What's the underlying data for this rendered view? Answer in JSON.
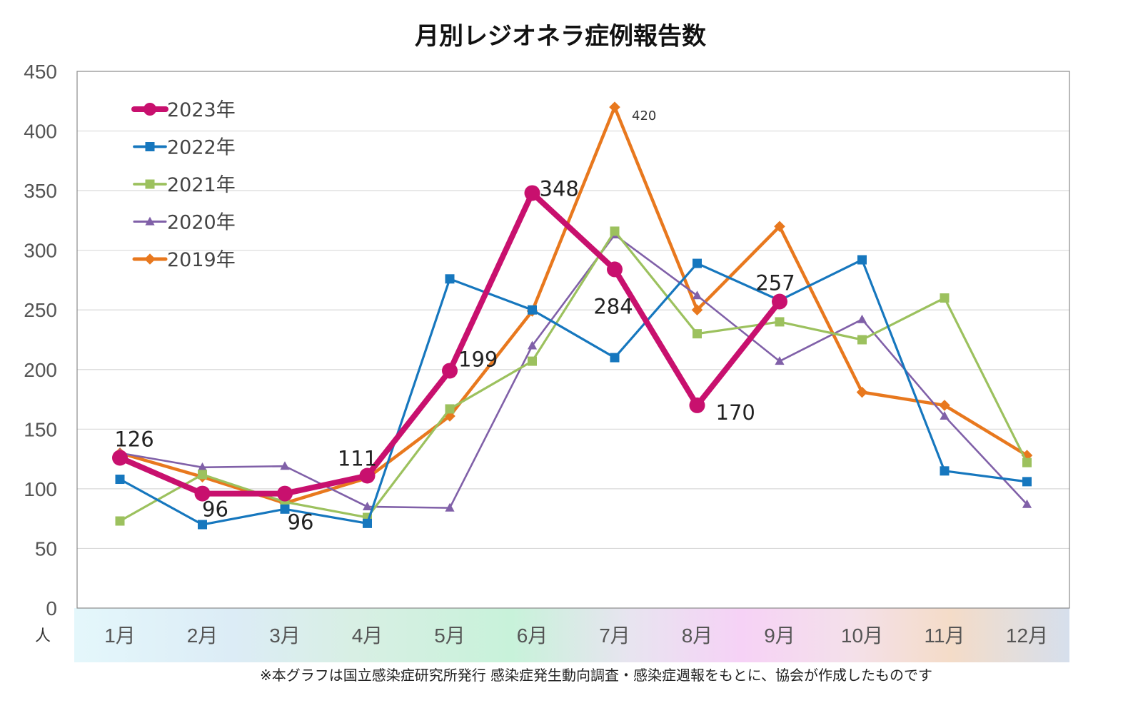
{
  "chart_data": {
    "type": "line",
    "title": "月別レジオネラ症例報告数",
    "ylabel": "人",
    "xlabel": "",
    "ylim": [
      0,
      450
    ],
    "yticks": [
      0,
      50,
      100,
      150,
      200,
      250,
      300,
      350,
      400,
      450
    ],
    "grid": true,
    "legend_position": "top-left",
    "categories": [
      "1月",
      "2月",
      "3月",
      "4月",
      "5月",
      "6月",
      "7月",
      "8月",
      "9月",
      "10月",
      "11月",
      "12月"
    ],
    "series": [
      {
        "name": "2023年",
        "color": "#c8106e",
        "marker": "circle",
        "values": [
          126,
          96,
          96,
          111,
          199,
          348,
          284,
          170,
          257,
          null,
          null,
          null
        ]
      },
      {
        "name": "2022年",
        "color": "#1677be",
        "marker": "square",
        "values": [
          108,
          70,
          83,
          71,
          276,
          250,
          210,
          289,
          258,
          292,
          115,
          106
        ]
      },
      {
        "name": "2021年",
        "color": "#9cc15e",
        "marker": "square",
        "values": [
          73,
          112,
          89,
          76,
          167,
          207,
          316,
          230,
          240,
          225,
          260,
          122
        ]
      },
      {
        "name": "2020年",
        "color": "#8060a8",
        "marker": "triangle",
        "values": [
          130,
          118,
          119,
          85,
          84,
          220,
          313,
          262,
          207,
          242,
          161,
          87
        ]
      },
      {
        "name": "2019年",
        "color": "#e8781e",
        "marker": "diamond",
        "values": [
          130,
          110,
          88,
          109,
          161,
          249,
          420,
          250,
          320,
          181,
          170,
          128
        ]
      }
    ],
    "data_labels": [
      {
        "series": "2023年",
        "index": 0,
        "text": "126"
      },
      {
        "series": "2023年",
        "index": 1,
        "text": "96"
      },
      {
        "series": "2023年",
        "index": 2,
        "text": "96"
      },
      {
        "series": "2023年",
        "index": 3,
        "text": "111"
      },
      {
        "series": "2023年",
        "index": 4,
        "text": "199"
      },
      {
        "series": "2023年",
        "index": 5,
        "text": "348"
      },
      {
        "series": "2023年",
        "index": 6,
        "text": "284"
      },
      {
        "series": "2023年",
        "index": 7,
        "text": "170"
      },
      {
        "series": "2023年",
        "index": 8,
        "text": "257"
      },
      {
        "series": "2019年",
        "index": 6,
        "text": "420"
      }
    ],
    "footnote": "※本グラフは国立感染症研究所発行 感染症発生動向調査・感染症週報をもとに、協会が作成したものです"
  }
}
